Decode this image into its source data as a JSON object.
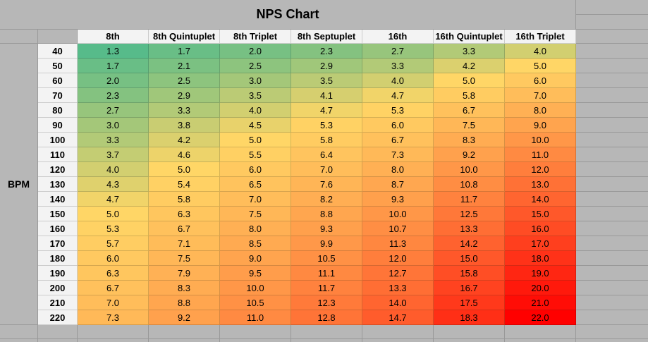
{
  "chart_data": {
    "type": "heatmap",
    "title": "NPS Chart",
    "row_axis_label": "BPM",
    "columns": [
      "8th",
      "8th Quintuplet",
      "8th Triplet",
      "8th Septuplet",
      "16th",
      "16th Quintuplet",
      "16th Triplet"
    ],
    "rows_bpm": [
      40,
      50,
      60,
      70,
      80,
      90,
      100,
      110,
      120,
      130,
      140,
      150,
      160,
      170,
      180,
      190,
      200,
      210,
      220
    ],
    "values": [
      [
        1.3,
        1.7,
        2.0,
        2.3,
        2.7,
        3.3,
        4.0
      ],
      [
        1.7,
        2.1,
        2.5,
        2.9,
        3.3,
        4.2,
        5.0
      ],
      [
        2.0,
        2.5,
        3.0,
        3.5,
        4.0,
        5.0,
        6.0
      ],
      [
        2.3,
        2.9,
        3.5,
        4.1,
        4.7,
        5.8,
        7.0
      ],
      [
        2.7,
        3.3,
        4.0,
        4.7,
        5.3,
        6.7,
        8.0
      ],
      [
        3.0,
        3.8,
        4.5,
        5.3,
        6.0,
        7.5,
        9.0
      ],
      [
        3.3,
        4.2,
        5.0,
        5.8,
        6.7,
        8.3,
        10.0
      ],
      [
        3.7,
        4.6,
        5.5,
        6.4,
        7.3,
        9.2,
        11.0
      ],
      [
        4.0,
        5.0,
        6.0,
        7.0,
        8.0,
        10.0,
        12.0
      ],
      [
        4.3,
        5.4,
        6.5,
        7.6,
        8.7,
        10.8,
        13.0
      ],
      [
        4.7,
        5.8,
        7.0,
        8.2,
        9.3,
        11.7,
        14.0
      ],
      [
        5.0,
        6.3,
        7.5,
        8.8,
        10.0,
        12.5,
        15.0
      ],
      [
        5.3,
        6.7,
        8.0,
        9.3,
        10.7,
        13.3,
        16.0
      ],
      [
        5.7,
        7.1,
        8.5,
        9.9,
        11.3,
        14.2,
        17.0
      ],
      [
        6.0,
        7.5,
        9.0,
        10.5,
        12.0,
        15.0,
        18.0
      ],
      [
        6.3,
        7.9,
        9.5,
        11.1,
        12.7,
        15.8,
        19.0
      ],
      [
        6.7,
        8.3,
        10.0,
        11.7,
        13.3,
        16.7,
        20.0
      ],
      [
        7.0,
        8.8,
        10.5,
        12.3,
        14.0,
        17.5,
        21.0
      ],
      [
        7.3,
        9.2,
        11.0,
        12.8,
        14.7,
        18.3,
        22.0
      ]
    ],
    "value_decimals": 1,
    "gradient": {
      "min_value": 1.3,
      "min_color": "#57bb8a",
      "mid_value": 5.0,
      "mid_color": "#ffd666",
      "max_value": 22.0,
      "max_color": "#ff0000"
    },
    "colors": {
      "canvas_gray": "#b7b7b7",
      "header_bg": "#f3f3f3",
      "text": "#000000",
      "gridline": "rgba(0,0,0,0.16)"
    },
    "layout_hints": {
      "grid": "on",
      "legend": "none",
      "empty_cells_right_and_bottom": true
    }
  }
}
